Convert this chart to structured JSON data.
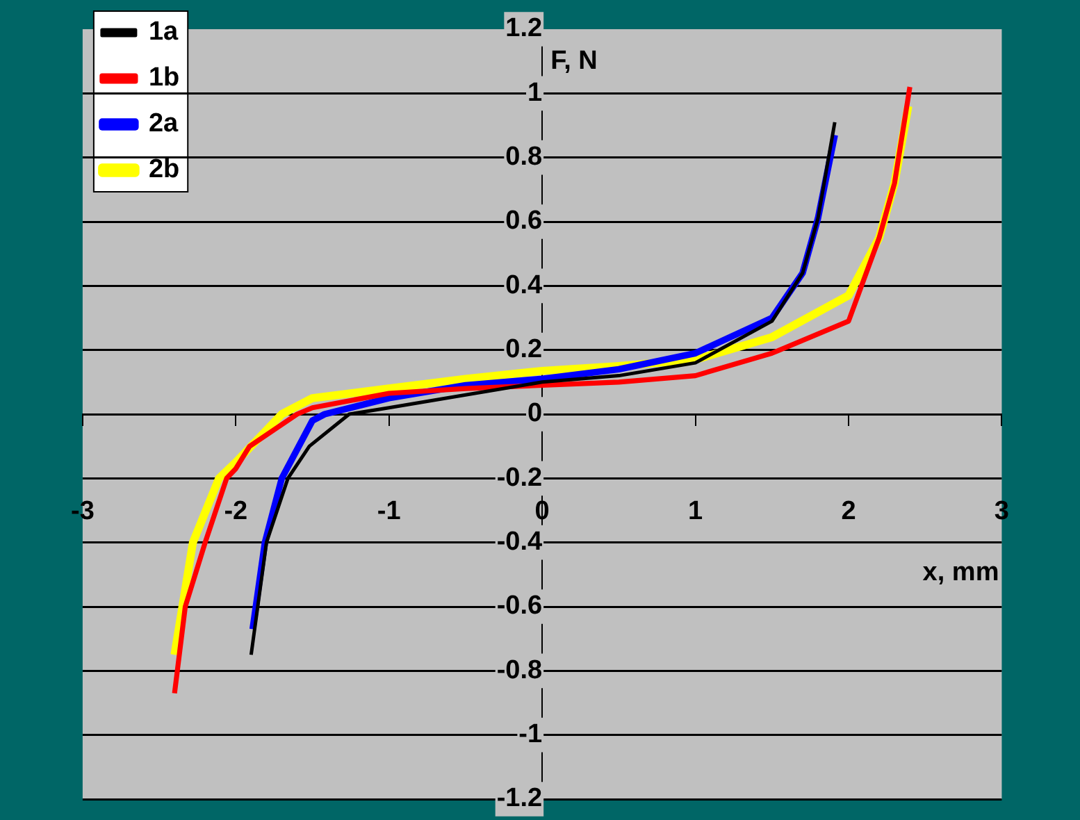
{
  "chart_data": {
    "type": "line",
    "xlabel": "x, mm",
    "ylabel": "F, N",
    "xlim": [
      -3,
      3
    ],
    "xticks": [
      -3,
      -2,
      -1,
      0,
      1,
      2,
      3
    ],
    "ylim": [
      -1.2,
      1.2
    ],
    "yticks": [
      -1.2,
      -1,
      -0.8,
      -0.6,
      -0.4,
      -0.2,
      0,
      0.2,
      0.4,
      0.6,
      0.8,
      1,
      1.2
    ],
    "grid": "y",
    "legend": "top left",
    "line_style": "solid",
    "series": [
      {
        "name": "1a",
        "color": "#000000",
        "x": [
          -1.9,
          -1.8,
          -1.66,
          -1.52,
          -1.26,
          -1,
          -0.5,
          0,
          0.5,
          1,
          1.5,
          1.7,
          1.8,
          1.91
        ],
        "values": [
          -0.75,
          -0.4,
          -0.2,
          -0.1,
          0,
          0.02,
          0.06,
          0.1,
          0.12,
          0.16,
          0.29,
          0.44,
          0.61,
          0.91
        ]
      },
      {
        "name": "1b",
        "color": "#ff0000",
        "x": [
          -2.4,
          -2.33,
          -2.2,
          -2.06,
          -2,
          -1.91,
          -1.6,
          -1.5,
          -1,
          -0.5,
          0,
          0.5,
          1,
          1.5,
          2,
          2.2,
          2.3,
          2.4
        ],
        "values": [
          -0.87,
          -0.6,
          -0.4,
          -0.2,
          -0.17,
          -0.1,
          0,
          0.02,
          0.065,
          0.08,
          0.09,
          0.1,
          0.12,
          0.19,
          0.29,
          0.55,
          0.72,
          1.02
        ]
      },
      {
        "name": "2a",
        "color": "#0000ff",
        "x": [
          -1.89,
          -1.81,
          -1.7,
          -1.5,
          -1.42,
          -1,
          -0.5,
          0,
          0.5,
          1,
          1.5,
          1.7,
          1.8,
          1.91
        ],
        "values": [
          -0.67,
          -0.4,
          -0.2,
          -0.02,
          0,
          0.05,
          0.09,
          0.11,
          0.14,
          0.19,
          0.3,
          0.44,
          0.61,
          0.87
        ]
      },
      {
        "name": "2b",
        "color": "#ffff00",
        "x": [
          -2.4,
          -2.28,
          -2.11,
          -2,
          -1.7,
          -1.5,
          -1,
          -0.5,
          0,
          0.5,
          1,
          1.5,
          2,
          2.2,
          2.3,
          2.39
        ],
        "values": [
          -0.75,
          -0.4,
          -0.2,
          -0.15,
          0,
          0.05,
          0.08,
          0.11,
          0.135,
          0.15,
          0.17,
          0.24,
          0.37,
          0.55,
          0.72,
          0.96
        ]
      }
    ]
  }
}
